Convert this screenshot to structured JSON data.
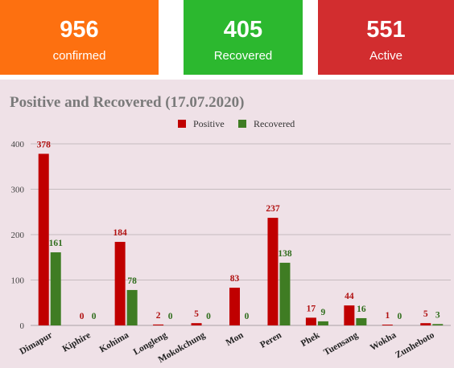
{
  "cards": {
    "confirmed": {
      "value": "956",
      "label": "confirmed",
      "color": "#fd7010"
    },
    "recovered": {
      "value": "405",
      "label": "Recovered",
      "color": "#2cb82f"
    },
    "active": {
      "value": "551",
      "label": "Active",
      "color": "#d22d2f"
    }
  },
  "colors": {
    "positive": "#c00000",
    "recovered": "#3f7c23",
    "positive_label": "#b01010",
    "recovered_label": "#2f6d1c",
    "panel_bg": "#efe1e7",
    "grid": "#b8aeb2"
  },
  "chart_data": {
    "type": "bar",
    "title": "Positive and Recovered (17.07.2020)",
    "categories": [
      "Dimapur",
      "Kiphire",
      "Kohima",
      "Longleng",
      "Mokokchung",
      "Mon",
      "Peren",
      "Phek",
      "Tuensang",
      "Wokha",
      "Zunheboto"
    ],
    "series": [
      {
        "name": "Positive",
        "values": [
          378,
          0,
          184,
          2,
          5,
          83,
          237,
          17,
          44,
          1,
          5
        ]
      },
      {
        "name": "Recovered",
        "values": [
          161,
          0,
          78,
          0,
          0,
          0,
          138,
          9,
          16,
          0,
          3
        ]
      }
    ],
    "yticks": [
      0,
      100,
      200,
      300,
      400
    ],
    "ylim": [
      0,
      400
    ],
    "legend": "top",
    "grid": true
  }
}
